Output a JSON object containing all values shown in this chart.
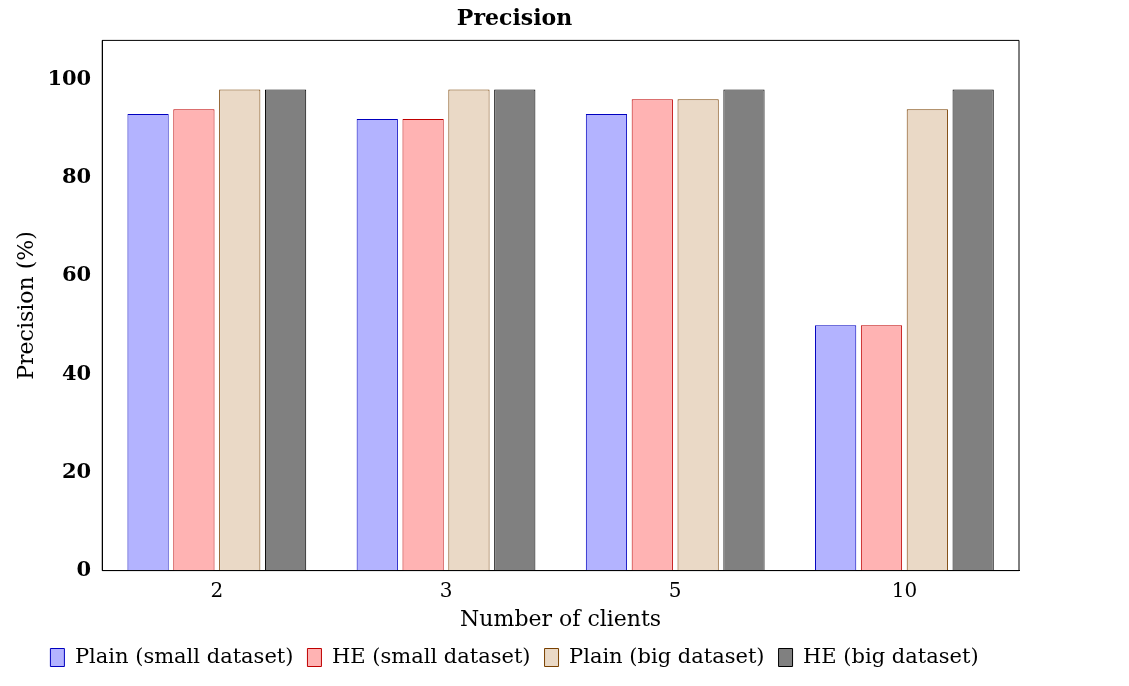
{
  "chart_data": {
    "type": "bar",
    "title": "Precision",
    "xlabel": "Number of clients",
    "ylabel": "Precision (%)",
    "categories": [
      "2",
      "3",
      "5",
      "10"
    ],
    "series": [
      {
        "name": "Plain (small dataset)",
        "color": "#b3b3ff",
        "values": [
          93,
          92,
          93,
          50
        ]
      },
      {
        "name": "HE (small dataset)",
        "color": "#ffb3b3",
        "values": [
          94,
          92,
          96,
          50
        ]
      },
      {
        "name": "Plain (big dataset)",
        "color": "#ead9c6",
        "values": [
          98,
          98,
          96,
          94
        ]
      },
      {
        "name": "HE (big dataset)",
        "color": "#808080",
        "values": [
          98,
          98,
          98,
          98
        ]
      }
    ],
    "ylim": [
      0,
      108
    ],
    "yticks": [
      0,
      20,
      40,
      60,
      80,
      100
    ],
    "grid": false,
    "legend": "bottom"
  }
}
